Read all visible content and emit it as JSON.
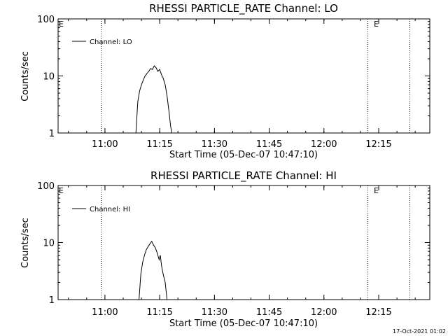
{
  "chart_data": [
    {
      "type": "line",
      "title": "RHESSI PARTICLE_RATE Channel: LO",
      "xlabel": "Start Time (05-Dec-07 10:47:10)",
      "ylabel": "Counts/sec",
      "y_scale": "log",
      "ylim": [
        1,
        100
      ],
      "y_ticks": [
        "1",
        "10",
        "100"
      ],
      "x_range": [
        "10:47:10",
        "12:29:00"
      ],
      "x_ticks": [
        "11:00",
        "11:15",
        "11:30",
        "11:45",
        "12:00",
        "12:15"
      ],
      "legend": {
        "position": "top-left",
        "entries": [
          "Channel: LO"
        ]
      },
      "flag_labels": [
        {
          "text": "E",
          "time": "10:47:10"
        },
        {
          "text": "E",
          "time": "12:12:45"
        }
      ],
      "dotted_lines": [
        "10:59:00",
        "12:12:00",
        "12:23:30"
      ],
      "series": [
        {
          "name": "Channel: LO",
          "points": [
            [
              "11:08:30",
              1
            ],
            [
              "11:09:00",
              3.5
            ],
            [
              "11:09:30",
              5.5
            ],
            [
              "11:10:00",
              7
            ],
            [
              "11:10:30",
              8.5
            ],
            [
              "11:11:00",
              10
            ],
            [
              "11:11:30",
              11
            ],
            [
              "11:12:00",
              12
            ],
            [
              "11:12:30",
              13.5
            ],
            [
              "11:13:00",
              13
            ],
            [
              "11:13:30",
              15
            ],
            [
              "11:14:00",
              14
            ],
            [
              "11:14:30",
              12
            ],
            [
              "11:15:00",
              13
            ],
            [
              "11:15:30",
              10.5
            ],
            [
              "11:16:00",
              9
            ],
            [
              "11:16:30",
              7
            ],
            [
              "11:17:00",
              4.5
            ],
            [
              "11:17:30",
              2.5
            ],
            [
              "11:18:00",
              1.3
            ],
            [
              "11:18:20",
              1
            ]
          ]
        }
      ]
    },
    {
      "type": "line",
      "title": "RHESSI PARTICLE_RATE Channel: HI",
      "xlabel": "Start Time (05-Dec-07 10:47:10)",
      "ylabel": "Counts/sec",
      "y_scale": "log",
      "ylim": [
        1,
        100
      ],
      "y_ticks": [
        "1",
        "10",
        "100"
      ],
      "x_range": [
        "10:47:10",
        "12:29:00"
      ],
      "x_ticks": [
        "11:00",
        "11:15",
        "11:30",
        "11:45",
        "12:00",
        "12:15"
      ],
      "legend": {
        "position": "top-left",
        "entries": [
          "Channel: HI"
        ]
      },
      "flag_labels": [
        {
          "text": "E",
          "time": "10:47:10"
        },
        {
          "text": "E",
          "time": "12:12:45"
        }
      ],
      "dotted_lines": [
        "10:59:00",
        "12:12:00",
        "12:23:30"
      ],
      "series": [
        {
          "name": "Channel: HI",
          "points": [
            [
              "11:09:20",
              1
            ],
            [
              "11:09:50",
              2.8
            ],
            [
              "11:10:20",
              4.5
            ],
            [
              "11:10:50",
              6
            ],
            [
              "11:11:20",
              7.5
            ],
            [
              "11:11:50",
              8.5
            ],
            [
              "11:12:20",
              9.5
            ],
            [
              "11:12:50",
              10.5
            ],
            [
              "11:13:20",
              9
            ],
            [
              "11:13:50",
              8
            ],
            [
              "11:14:20",
              6.5
            ],
            [
              "11:14:50",
              5
            ],
            [
              "11:15:10",
              6
            ],
            [
              "11:15:30",
              4
            ],
            [
              "11:15:50",
              3
            ],
            [
              "11:16:30",
              2
            ],
            [
              "11:17:00",
              1
            ]
          ]
        }
      ]
    }
  ],
  "footer": {
    "timestamp": "17-Oct-2021 01:02"
  }
}
